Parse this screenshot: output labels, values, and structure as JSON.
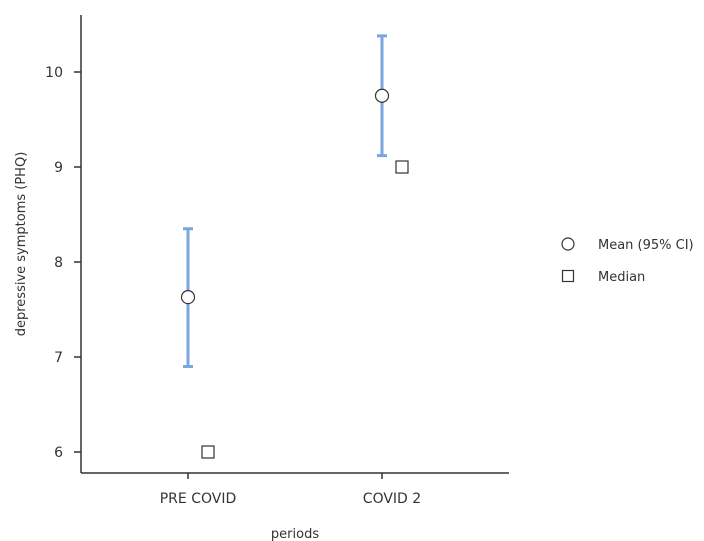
{
  "chart_data": {
    "type": "scatter",
    "title": "",
    "xlabel": "periods",
    "ylabel": "depressive symptoms (PHQ)",
    "categories": [
      "PRE COVID",
      "COVID 2"
    ],
    "ylim": [
      5.8,
      10.6
    ],
    "yticks": [
      6,
      7,
      8,
      9,
      10
    ],
    "grid": false,
    "legend_position": "right",
    "series": [
      {
        "name": "Mean (95% CI)",
        "marker": "circle",
        "values": [
          7.63,
          9.75
        ],
        "ci_low": [
          6.9,
          9.12
        ],
        "ci_high": [
          8.35,
          10.38
        ]
      },
      {
        "name": "Median",
        "marker": "square",
        "values": [
          6,
          9
        ]
      }
    ],
    "colors": {
      "errorbar": "#7aa6e0",
      "axis": "#333333",
      "marker_fill": "#ffffff",
      "marker_stroke": "#333333"
    }
  }
}
